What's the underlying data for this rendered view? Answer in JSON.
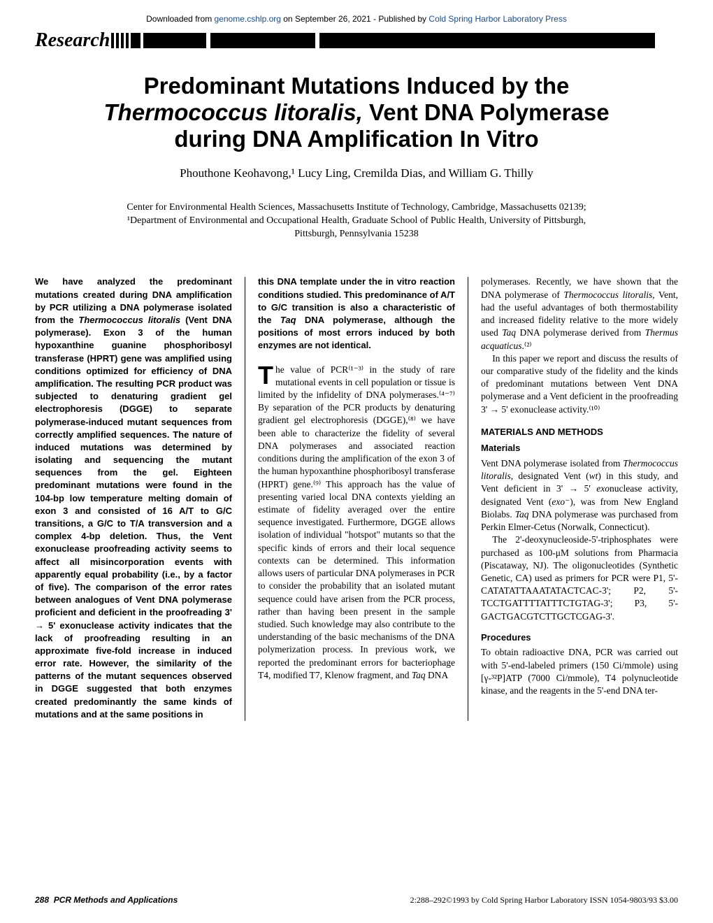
{
  "header": {
    "download_text_pre": "Downloaded from ",
    "download_link1": "genome.cshlp.org",
    "download_text_mid": " on September 26, 2021 - Published by ",
    "download_link2": "Cold Spring Harbor Laboratory Press",
    "section_label": "Research"
  },
  "title": {
    "line1": "Predominant Mutations Induced by the",
    "line2_italic": "Thermococcus litoralis,",
    "line2_rest": " Vent DNA Polymerase",
    "line3": "during DNA Amplification In Vitro"
  },
  "authors": "Phouthone Keohavong,¹ Lucy Ling, Cremilda Dias, and William G. Thilly",
  "affiliations": {
    "line1": "Center for Environmental Health Sciences, Massachusetts Institute of Technology, Cambridge, Massachusetts 02139;",
    "line2": "¹Department of Environmental and Occupational Health, Graduate School of Public Health, University of Pittsburgh,",
    "line3": "Pittsburgh, Pennsylvania 15238"
  },
  "abstract": {
    "col1": "We have analyzed the predominant mutations created during DNA amplification by PCR utilizing a DNA polymerase isolated from the Thermococcus litoralis (Vent DNA polymerase). Exon 3 of the human hypoxanthine guanine phosphoribosyl transferase (HPRT) gene was amplified using conditions optimized for efficiency of DNA amplification. The resulting PCR product was subjected to denaturing gradient gel electrophoresis (DGGE) to separate polymerase-induced mutant sequences from correctly amplified sequences. The nature of induced mutations was determined by isolating and sequencing the mutant sequences from the gel. Eighteen predominant mutations were found in the 104-bp low temperature melting domain of exon 3 and consisted of 16 A/T to G/C transitions, a G/C to T/A transversion and a complex 4-bp deletion. Thus, the Vent exonuclease proofreading activity seems to affect all misincorporation events with apparently equal probability (i.e., by a factor of five). The comparison of the error rates between analogues of Vent DNA polymerase proficient and deficient in the proofreading 3' → 5' exonuclease activity indicates that the lack of proofreading resulting in an approximate five-fold increase in induced error rate. However, the similarity of the patterns of the mutant sequences observed in DGGE suggested that both enzymes created predominantly the same kinds of mutations and at the same positions in",
    "col2": "this DNA template under the in vitro reaction conditions studied. This predominance of A/T to G/C transition is also a characteristic of the Taq DNA polymerase, although the positions of most errors induced by both enzymes are not identical."
  },
  "body": {
    "col2_p1": "he value of PCR⁽¹⁻³⁾ in the study of rare mutational events in cell population or tissue is limited by the infidelity of DNA polymerases.⁽⁴⁻⁷⁾ By separation of the PCR products by denaturing gradient gel electrophoresis (DGGE),⁽⁸⁾ we have been able to characterize the fidelity of several DNA polymerases and associated reaction conditions during the amplification of the exon 3 of the human hypoxanthine phosphoribosyl transferase (HPRT) gene.⁽⁹⁾ This approach has the value of presenting varied local DNA contexts yielding an estimate of fidelity averaged over the entire sequence investigated. Furthermore, DGGE allows isolation of individual \"hotspot\" mutants so that the specific kinds of errors and their local sequence contexts can be determined. This information allows users of particular DNA polymerases in PCR to consider the probability that an isolated mutant sequence could have arisen from the PCR process, rather than having been present in the sample studied. Such knowledge may also contribute to the understanding of the basic mechanisms of the DNA polymerization process. In previous work, we reported the predominant errors for bacteriophage T4, modified T7, Klenow fragment, and Taq DNA",
    "col3_p1": "polymerases. Recently, we have shown that the DNA polymerase of Thermococcus litoralis, Vent, had the useful advantages of both thermostability and increased fidelity relative to the more widely used Taq DNA polymerase derived from Thermus acquaticus.⁽²⁾",
    "col3_p2": "In this paper we report and discuss the results of our comparative study of the fidelity and the kinds of predominant mutations between Vent DNA polymerase and a Vent deficient in the proofreading 3' → 5' exonuclease activity.⁽¹⁰⁾",
    "materials_heading": "MATERIALS AND METHODS",
    "materials_sub": "Materials",
    "col3_p3": "Vent DNA polymerase isolated from Thermococcus litoralis, designated Vent (wt) in this study, and Vent deficient in 3' → 5' exonuclease activity, designated Vent (exo⁻), was from New England Biolabs. Taq DNA polymerase was purchased from Perkin Elmer-Cetus (Norwalk, Connecticut).",
    "col3_p4": "The 2'-deoxynucleoside-5'-triphosphates were purchased as 100-μM solutions from Pharmacia (Piscataway, NJ). The oligonucleotides (Synthetic Genetic, CA) used as primers for PCR were P1, 5'-CATATATTAAATATACTCAC-3'; P2, 5'-TCCTGATTTTATTTCTGTAG-3'; P3, 5'-GACTGACGTCTTGCTCGAG-3'.",
    "procedures_sub": "Procedures",
    "col3_p5": "To obtain radioactive DNA, PCR was carried out with 5'-end-labeled primers (150 Ci/mmole) using [γ-³²P]ATP (7000 Ci/mmole), T4 polynucleotide kinase, and the reagents in the 5'-end DNA ter-"
  },
  "footer": {
    "page": "288",
    "journal": "PCR Methods and Applications",
    "right": "2:288–292©1993 by Cold Spring Harbor Laboratory ISSN 1054-9803/93 $3.00"
  },
  "colors": {
    "link": "#1a4b8c",
    "text": "#000000",
    "bg": "#ffffff"
  }
}
